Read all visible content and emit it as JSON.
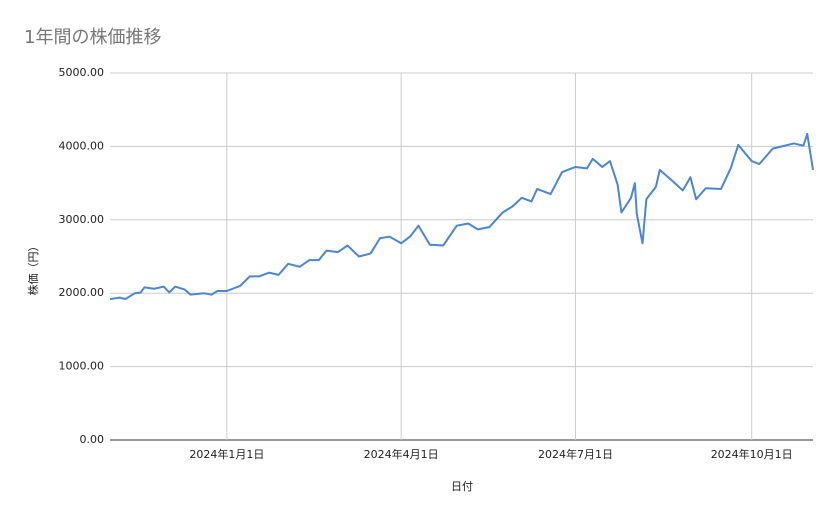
{
  "chart_data": {
    "type": "line",
    "title": "1年間の株価推移",
    "x_label": "日付",
    "y_label": "株価（円）",
    "x": [
      "2023-11-01",
      "2023-11-06",
      "2023-11-09",
      "2023-11-14",
      "2023-11-17",
      "2023-11-19",
      "2023-11-24",
      "2023-11-29",
      "2023-12-02",
      "2023-12-05",
      "2023-12-10",
      "2023-12-13",
      "2023-12-20",
      "2023-12-24",
      "2023-12-27",
      "2024-01-01",
      "2024-01-08",
      "2024-01-13",
      "2024-01-18",
      "2024-01-23",
      "2024-01-28",
      "2024-02-02",
      "2024-02-08",
      "2024-02-13",
      "2024-02-18",
      "2024-02-22",
      "2024-02-28",
      "2024-03-04",
      "2024-03-10",
      "2024-03-16",
      "2024-03-21",
      "2024-03-26",
      "2024-04-01",
      "2024-04-06",
      "2024-04-10",
      "2024-04-16",
      "2024-04-23",
      "2024-04-30",
      "2024-05-06",
      "2024-05-11",
      "2024-05-17",
      "2024-05-24",
      "2024-05-29",
      "2024-06-03",
      "2024-06-08",
      "2024-06-11",
      "2024-06-18",
      "2024-06-24",
      "2024-07-01",
      "2024-07-07",
      "2024-07-10",
      "2024-07-15",
      "2024-07-19",
      "2024-07-23",
      "2024-07-25",
      "2024-07-30",
      "2024-08-01",
      "2024-08-02",
      "2024-08-05",
      "2024-08-07",
      "2024-08-12",
      "2024-08-14",
      "2024-08-21",
      "2024-08-26",
      "2024-08-30",
      "2024-09-02",
      "2024-09-07",
      "2024-09-15",
      "2024-09-20",
      "2024-09-24",
      "2024-10-01",
      "2024-10-05",
      "2024-10-12",
      "2024-10-23",
      "2024-10-28",
      "2024-10-30",
      "2024-11-02"
    ],
    "series": [
      {
        "name": "株価",
        "color": "#4a86d4",
        "values": [
          1920,
          1940,
          1920,
          2000,
          2010,
          2080,
          2060,
          2090,
          2010,
          2090,
          2050,
          1980,
          2000,
          1980,
          2030,
          2030,
          2100,
          2230,
          2230,
          2280,
          2250,
          2400,
          2360,
          2450,
          2450,
          2580,
          2560,
          2650,
          2500,
          2540,
          2750,
          2770,
          2680,
          2780,
          2920,
          2660,
          2650,
          2920,
          2950,
          2870,
          2900,
          3100,
          3180,
          3300,
          3250,
          3420,
          3350,
          3650,
          3720,
          3700,
          3830,
          3720,
          3800,
          3480,
          3100,
          3300,
          3500,
          3080,
          2680,
          3280,
          3450,
          3680,
          3520,
          3400,
          3580,
          3280,
          3430,
          3420,
          3700,
          4020,
          3800,
          3760,
          3970,
          4040,
          4010,
          4170,
          3680
        ]
      }
    ],
    "xlim": [
      "2023-11-01",
      "2024-11-02"
    ],
    "xticks": [
      {
        "value": "2024-01-01",
        "label": "2024年1月1日"
      },
      {
        "value": "2024-04-01",
        "label": "2024年4月1日"
      },
      {
        "value": "2024-07-01",
        "label": "2024年7月1日"
      },
      {
        "value": "2024-10-01",
        "label": "2024年10月1日"
      }
    ],
    "ylim": [
      0,
      5000
    ],
    "yticks": [
      {
        "value": 0,
        "label": "0.00"
      },
      {
        "value": 1000,
        "label": "1000.00"
      },
      {
        "value": 2000,
        "label": "2000.00"
      },
      {
        "value": 3000,
        "label": "3000.00"
      },
      {
        "value": 4000,
        "label": "4000.00"
      },
      {
        "value": 5000,
        "label": "5000.00"
      }
    ],
    "grid": true
  }
}
